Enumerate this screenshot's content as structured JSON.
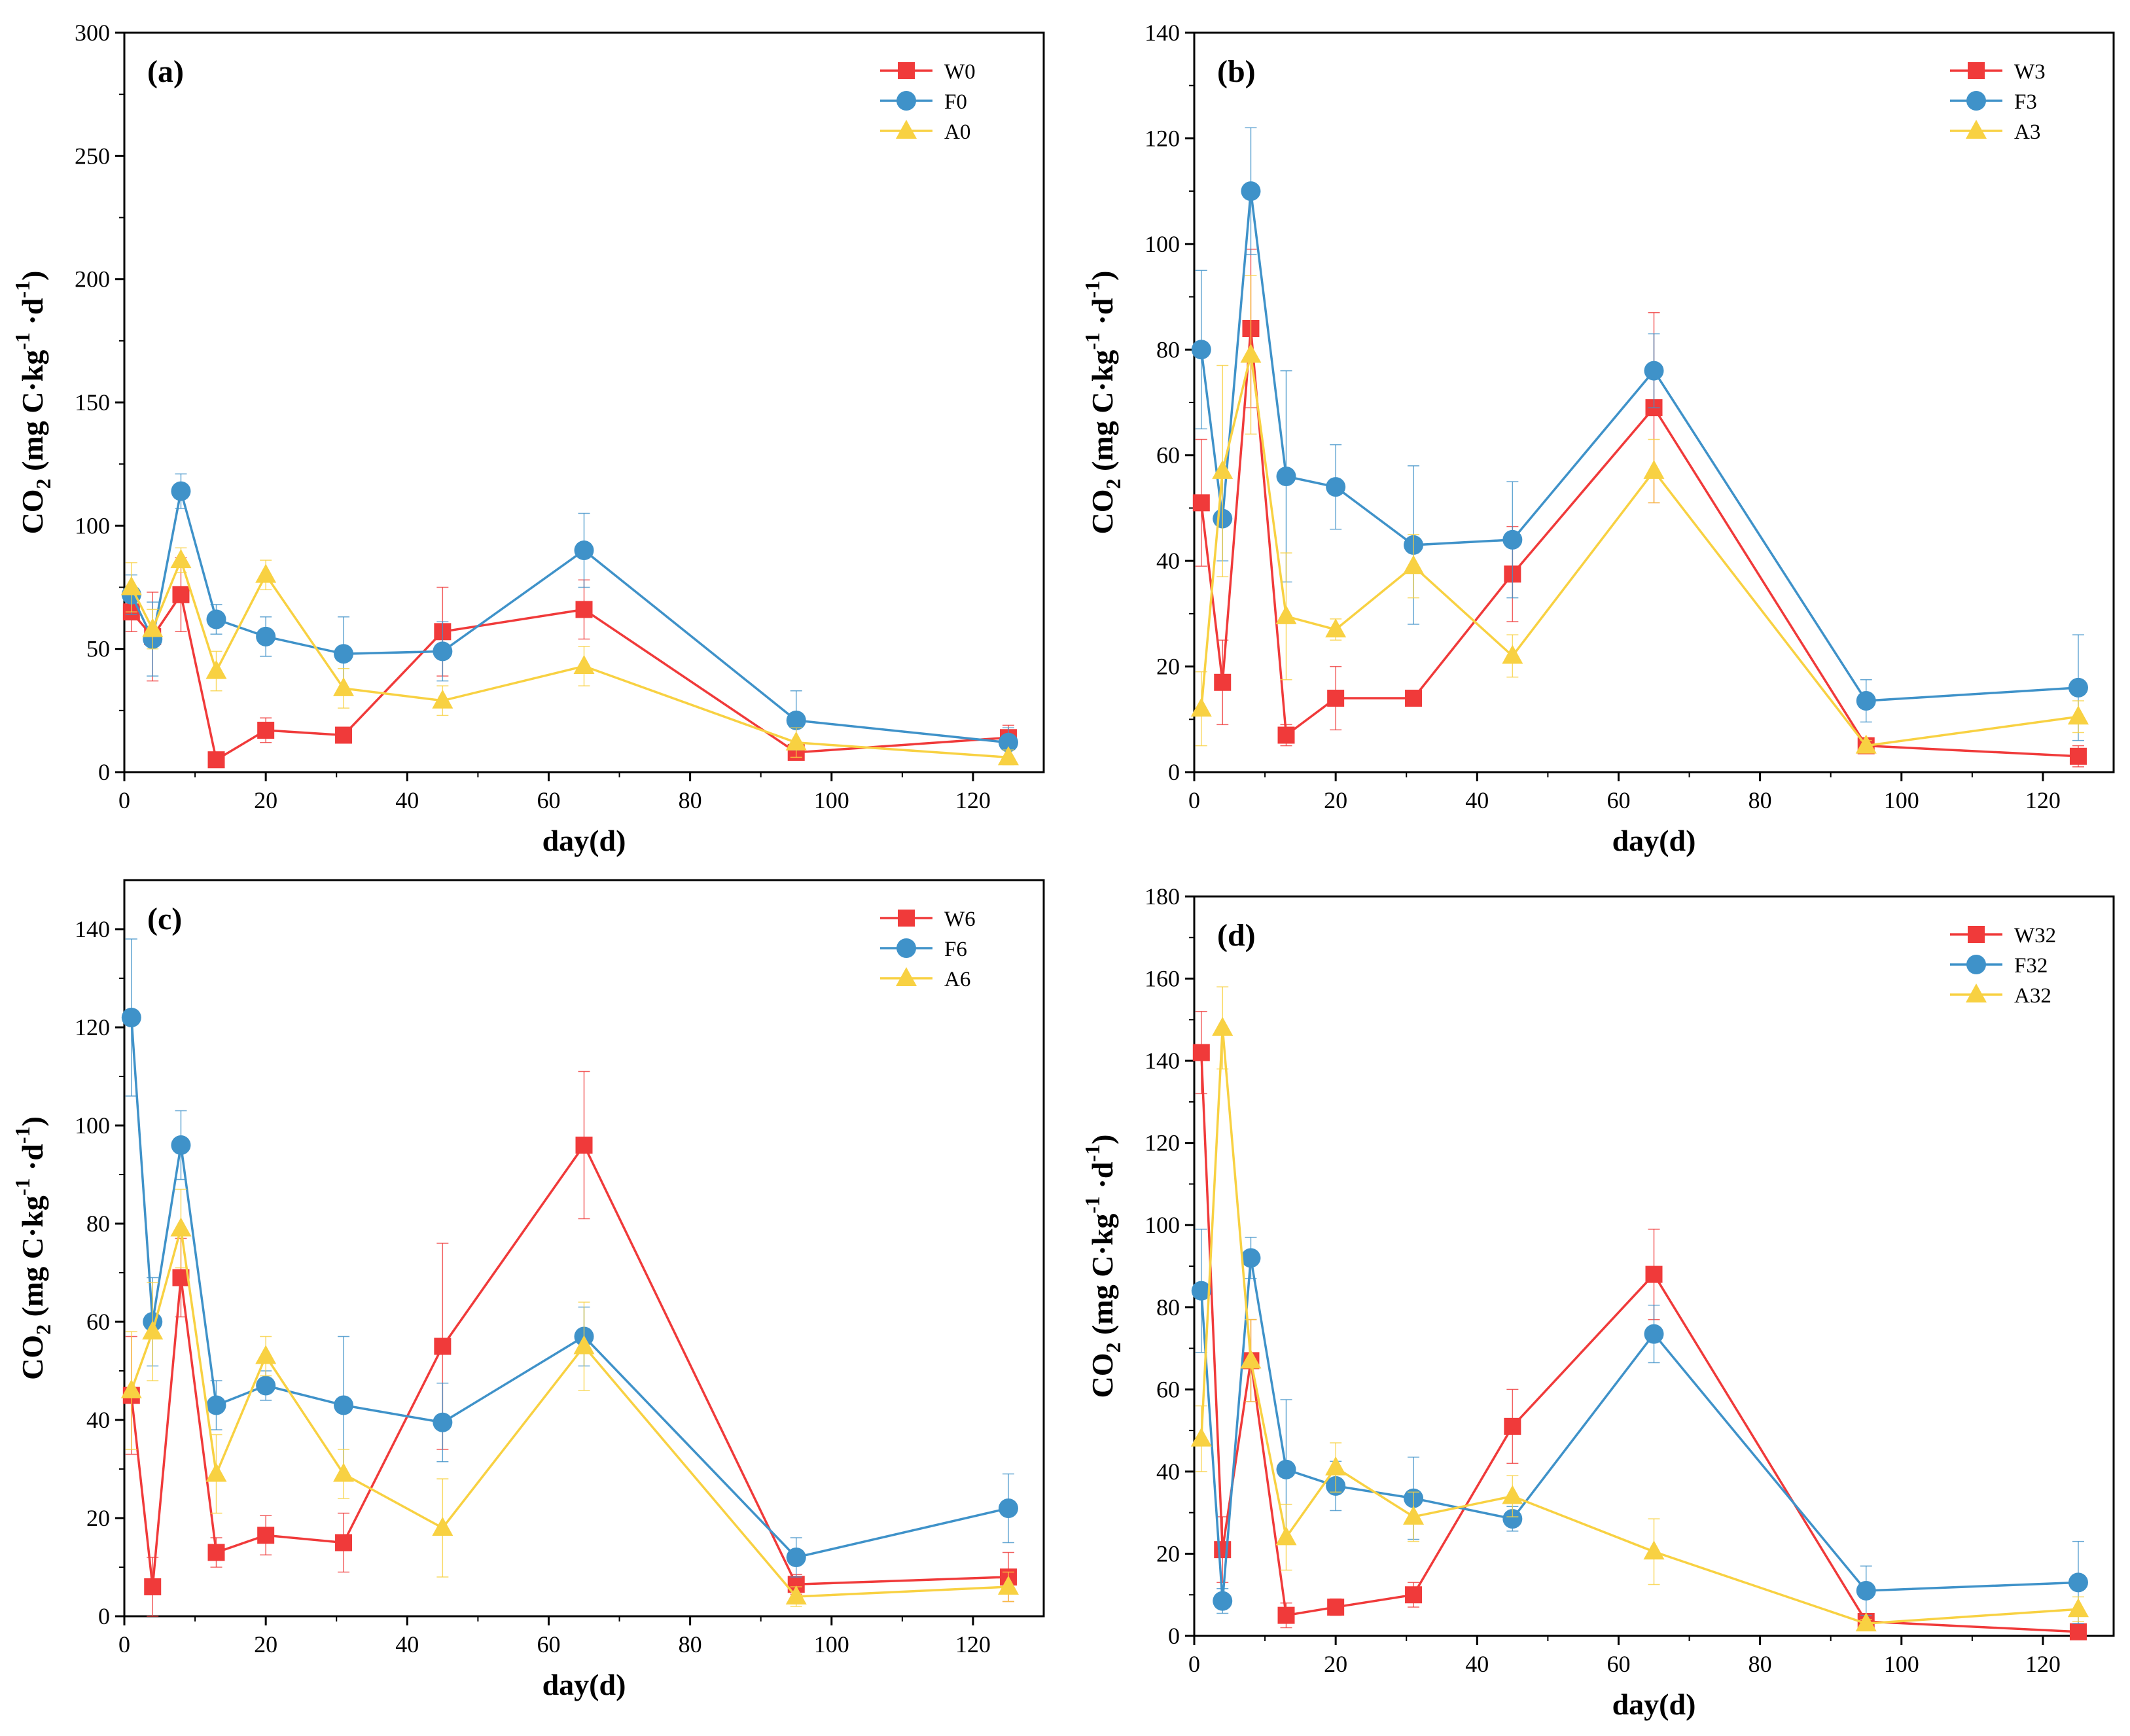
{
  "figure": {
    "colors": {
      "W": "#f03a3a",
      "F": "#3f92c9",
      "A": "#f8d142",
      "axis": "#000000"
    }
  },
  "chart_data": [
    {
      "type": "line",
      "title": "(a)",
      "xlabel": "day(d)",
      "ylabel_main": "CO",
      "ylabel_sub": "2",
      "ylabel_rest": " (mg C·kg",
      "ylabel_sup": "-1",
      "ylabel_tail": " ·d",
      "ylabel_sup2": "-1",
      "ylabel_close": ")",
      "xlim": [
        0,
        130
      ],
      "ylim": [
        0,
        300
      ],
      "xticks": [
        0,
        20,
        40,
        60,
        80,
        100,
        120
      ],
      "yticks": [
        0,
        50,
        100,
        150,
        200,
        250,
        300
      ],
      "x": [
        1,
        4,
        8,
        13,
        20,
        31,
        45,
        65,
        95,
        125
      ],
      "legend_position": "top-right",
      "series": [
        {
          "name": "W0",
          "marker": "square",
          "color": "#f03a3a",
          "values": [
            65,
            55,
            72,
            5,
            17,
            15,
            57,
            66,
            8,
            14
          ],
          "errors": [
            8,
            18,
            15,
            3,
            5,
            2,
            18,
            12,
            2,
            5
          ]
        },
        {
          "name": "F0",
          "marker": "circle",
          "color": "#3f92c9",
          "values": [
            72,
            54,
            114,
            62,
            55,
            48,
            49,
            90,
            21,
            12
          ],
          "errors": [
            8,
            15,
            7,
            6,
            8,
            15,
            12,
            15,
            12,
            6
          ]
        },
        {
          "name": "A0",
          "marker": "triangle",
          "color": "#f8d142",
          "values": [
            75,
            58,
            86,
            41,
            80,
            34,
            29,
            43,
            12,
            6
          ],
          "errors": [
            10,
            8,
            5,
            8,
            6,
            8,
            6,
            8,
            6,
            3
          ]
        }
      ]
    },
    {
      "type": "line",
      "title": "(b)",
      "xlabel": "day(d)",
      "ylabel_main": "CO",
      "ylabel_sub": "2",
      "ylabel_rest": " (mg C·kg",
      "ylabel_sup": "-1",
      "ylabel_tail": " ·d",
      "ylabel_sup2": "-1",
      "ylabel_close": ")",
      "xlim": [
        0,
        130
      ],
      "ylim": [
        0,
        140
      ],
      "xticks": [
        0,
        20,
        40,
        60,
        80,
        100,
        120
      ],
      "yticks": [
        0,
        20,
        40,
        60,
        80,
        100,
        120,
        140
      ],
      "x": [
        1,
        4,
        8,
        13,
        20,
        31,
        45,
        65,
        95,
        125
      ],
      "legend_position": "top-right",
      "series": [
        {
          "name": "W3",
          "marker": "square",
          "color": "#f03a3a",
          "values": [
            51,
            17,
            84,
            7,
            14,
            14,
            37.5,
            69,
            5,
            3
          ],
          "errors": [
            12,
            8,
            15,
            2,
            6,
            1.5,
            9,
            18,
            1.5,
            2
          ]
        },
        {
          "name": "F3",
          "marker": "circle",
          "color": "#3f92c9",
          "values": [
            80,
            48,
            110,
            56,
            54,
            43,
            44,
            76,
            13.5,
            16
          ],
          "errors": [
            15,
            8,
            12,
            20,
            8,
            15,
            11,
            7,
            4,
            10
          ]
        },
        {
          "name": "A3",
          "marker": "triangle",
          "color": "#f8d142",
          "values": [
            12,
            57,
            79,
            29.5,
            27,
            39,
            22,
            57,
            5,
            10.5
          ],
          "errors": [
            7,
            20,
            15,
            12,
            2,
            6,
            4,
            6,
            1,
            3
          ]
        }
      ]
    },
    {
      "type": "line",
      "title": "(c)",
      "xlabel": "day(d)",
      "ylabel_main": "CO",
      "ylabel_sub": "2",
      "ylabel_rest": " (mg C·kg",
      "ylabel_sup": "-1",
      "ylabel_tail": " ·d",
      "ylabel_sup2": "-1",
      "ylabel_close": ")",
      "xlim": [
        0,
        130
      ],
      "ylim": [
        0,
        150
      ],
      "xticks": [
        0,
        20,
        40,
        60,
        80,
        100,
        120
      ],
      "yticks": [
        0,
        20,
        40,
        60,
        80,
        100,
        120,
        140
      ],
      "x": [
        1,
        4,
        8,
        13,
        20,
        31,
        45,
        65,
        95,
        125
      ],
      "legend_position": "top-right",
      "series": [
        {
          "name": "W6",
          "marker": "square",
          "color": "#f03a3a",
          "values": [
            45,
            6,
            69,
            13,
            16.5,
            15,
            55,
            96,
            6.5,
            8
          ],
          "errors": [
            12,
            6,
            8,
            3,
            4,
            6,
            21,
            15,
            2,
            5
          ]
        },
        {
          "name": "F6",
          "marker": "circle",
          "color": "#3f92c9",
          "values": [
            122,
            60,
            96,
            43,
            47,
            43,
            39.5,
            57,
            12,
            22
          ],
          "errors": [
            16,
            9,
            7,
            5,
            3,
            14,
            8,
            6,
            4,
            7
          ]
        },
        {
          "name": "A6",
          "marker": "triangle",
          "color": "#f8d142",
          "values": [
            46,
            58,
            79,
            29,
            53,
            29,
            18,
            55,
            4,
            6
          ],
          "errors": [
            12,
            10,
            8,
            8,
            4,
            5,
            10,
            9,
            2,
            3
          ]
        }
      ]
    },
    {
      "type": "line",
      "title": "(d)",
      "xlabel": "day(d)",
      "ylabel_main": "CO",
      "ylabel_sub": "2",
      "ylabel_rest": " (mg C·kg",
      "ylabel_sup": "-1",
      "ylabel_tail": " ·d",
      "ylabel_sup2": "-1",
      "ylabel_close": ")",
      "xlim": [
        0,
        130
      ],
      "ylim": [
        0,
        180
      ],
      "xticks": [
        0,
        20,
        40,
        60,
        80,
        100,
        120
      ],
      "yticks": [
        0,
        20,
        40,
        60,
        80,
        100,
        120,
        140,
        160,
        180
      ],
      "x": [
        1,
        4,
        8,
        13,
        20,
        31,
        45,
        65,
        95,
        125
      ],
      "legend_position": "top-right",
      "series": [
        {
          "name": "W32",
          "marker": "square",
          "color": "#f03a3a",
          "values": [
            142,
            21,
            67,
            5,
            7,
            10,
            51,
            88,
            3.5,
            1
          ],
          "errors": [
            10,
            8,
            10,
            3,
            2,
            3,
            9,
            11,
            1,
            1
          ]
        },
        {
          "name": "F32",
          "marker": "circle",
          "color": "#3f92c9",
          "values": [
            84,
            8.5,
            92,
            40.5,
            36.5,
            33.5,
            28.5,
            73.5,
            11,
            13
          ],
          "errors": [
            15,
            3,
            5,
            17,
            6,
            10,
            3,
            7,
            6,
            10
          ]
        },
        {
          "name": "A32",
          "marker": "triangle",
          "color": "#f8d142",
          "values": [
            48,
            148,
            67,
            24,
            41,
            29,
            34,
            20.5,
            3,
            6.5
          ],
          "errors": [
            8,
            10,
            10,
            8,
            6,
            6,
            5,
            8,
            1,
            3
          ]
        }
      ]
    }
  ]
}
